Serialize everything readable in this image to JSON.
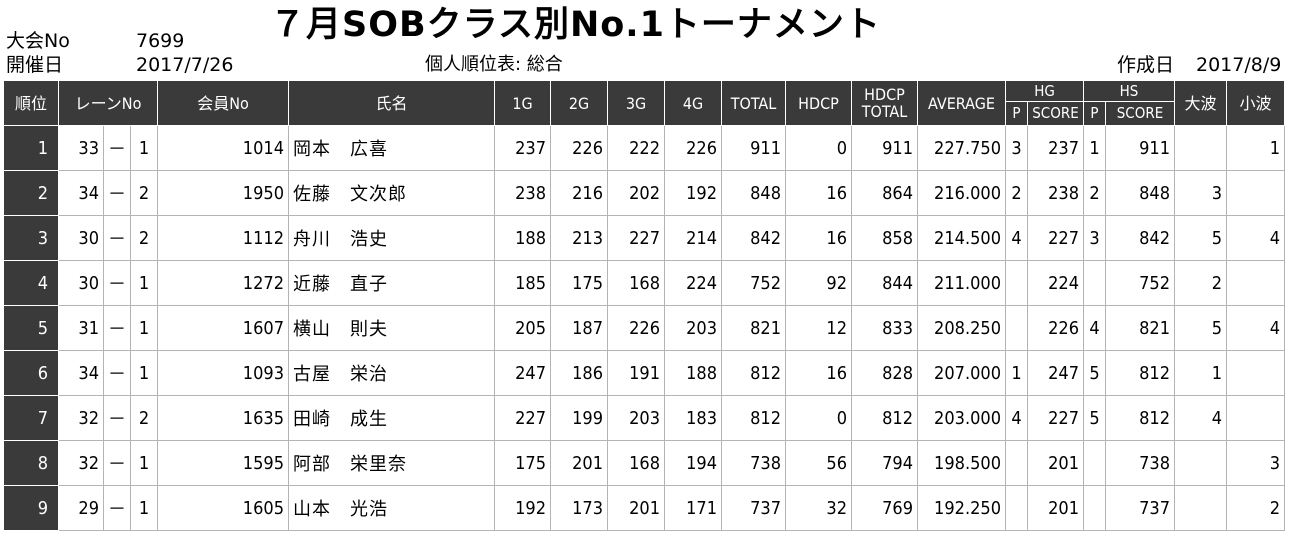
{
  "meta": {
    "tournament_no_label": "大会No",
    "tournament_no": "7699",
    "date_label": "開催日",
    "date": "2017/7/26",
    "created_label": "作成日",
    "created_date": "2017/8/9"
  },
  "title": "７月SOBクラス別No.1トーナメント",
  "subtitle": "個人順位表: 総合",
  "headers": {
    "rank": "順位",
    "lane": "レーンNo",
    "member": "会員No",
    "name": "氏名",
    "g1": "1G",
    "g2": "2G",
    "g3": "3G",
    "g4": "4G",
    "total": "TOTAL",
    "hdcp": "HDCP",
    "hdcp_total_1": "HDCP",
    "hdcp_total_2": "TOTAL",
    "average": "AVERAGE",
    "hg": "HG",
    "hs": "HS",
    "p": "P",
    "score": "SCORE",
    "big_wave": "大波",
    "small_wave": "小波"
  },
  "rows": [
    {
      "rank": "1",
      "lane_a": "33",
      "dash": "－",
      "lane_b": "1",
      "member": "1014",
      "name": "岡本　広喜",
      "g1": "237",
      "g2": "226",
      "g3": "222",
      "g4": "226",
      "total": "911",
      "hdcp": "0",
      "hdcp_total": "911",
      "average": "227.750",
      "hg_p": "3",
      "hg_score": "237",
      "hs_p": "1",
      "hs_score": "911",
      "big": "",
      "small": "1"
    },
    {
      "rank": "2",
      "lane_a": "34",
      "dash": "－",
      "lane_b": "2",
      "member": "1950",
      "name": "佐藤　文次郎",
      "g1": "238",
      "g2": "216",
      "g3": "202",
      "g4": "192",
      "total": "848",
      "hdcp": "16",
      "hdcp_total": "864",
      "average": "216.000",
      "hg_p": "2",
      "hg_score": "238",
      "hs_p": "2",
      "hs_score": "848",
      "big": "3",
      "small": ""
    },
    {
      "rank": "3",
      "lane_a": "30",
      "dash": "－",
      "lane_b": "2",
      "member": "1112",
      "name": "舟川　浩史",
      "g1": "188",
      "g2": "213",
      "g3": "227",
      "g4": "214",
      "total": "842",
      "hdcp": "16",
      "hdcp_total": "858",
      "average": "214.500",
      "hg_p": "4",
      "hg_score": "227",
      "hs_p": "3",
      "hs_score": "842",
      "big": "5",
      "small": "4"
    },
    {
      "rank": "4",
      "lane_a": "30",
      "dash": "－",
      "lane_b": "1",
      "member": "1272",
      "name": "近藤　直子",
      "g1": "185",
      "g2": "175",
      "g3": "168",
      "g4": "224",
      "total": "752",
      "hdcp": "92",
      "hdcp_total": "844",
      "average": "211.000",
      "hg_p": "",
      "hg_score": "224",
      "hs_p": "",
      "hs_score": "752",
      "big": "2",
      "small": ""
    },
    {
      "rank": "5",
      "lane_a": "31",
      "dash": "－",
      "lane_b": "1",
      "member": "1607",
      "name": "横山　則夫",
      "g1": "205",
      "g2": "187",
      "g3": "226",
      "g4": "203",
      "total": "821",
      "hdcp": "12",
      "hdcp_total": "833",
      "average": "208.250",
      "hg_p": "",
      "hg_score": "226",
      "hs_p": "4",
      "hs_score": "821",
      "big": "5",
      "small": "4"
    },
    {
      "rank": "6",
      "lane_a": "34",
      "dash": "－",
      "lane_b": "1",
      "member": "1093",
      "name": "古屋　栄治",
      "g1": "247",
      "g2": "186",
      "g3": "191",
      "g4": "188",
      "total": "812",
      "hdcp": "16",
      "hdcp_total": "828",
      "average": "207.000",
      "hg_p": "1",
      "hg_score": "247",
      "hs_p": "5",
      "hs_score": "812",
      "big": "1",
      "small": ""
    },
    {
      "rank": "7",
      "lane_a": "32",
      "dash": "－",
      "lane_b": "2",
      "member": "1635",
      "name": "田崎　成生",
      "g1": "227",
      "g2": "199",
      "g3": "203",
      "g4": "183",
      "total": "812",
      "hdcp": "0",
      "hdcp_total": "812",
      "average": "203.000",
      "hg_p": "4",
      "hg_score": "227",
      "hs_p": "5",
      "hs_score": "812",
      "big": "4",
      "small": ""
    },
    {
      "rank": "8",
      "lane_a": "32",
      "dash": "－",
      "lane_b": "1",
      "member": "1595",
      "name": "阿部　栄里奈",
      "g1": "175",
      "g2": "201",
      "g3": "168",
      "g4": "194",
      "total": "738",
      "hdcp": "56",
      "hdcp_total": "794",
      "average": "198.500",
      "hg_p": "",
      "hg_score": "201",
      "hs_p": "",
      "hs_score": "738",
      "big": "",
      "small": "3"
    },
    {
      "rank": "9",
      "lane_a": "29",
      "dash": "－",
      "lane_b": "1",
      "member": "1605",
      "name": "山本　光浩",
      "g1": "192",
      "g2": "173",
      "g3": "201",
      "g4": "171",
      "total": "737",
      "hdcp": "32",
      "hdcp_total": "769",
      "average": "192.250",
      "hg_p": "",
      "hg_score": "201",
      "hs_p": "",
      "hs_score": "737",
      "big": "",
      "small": "2"
    }
  ]
}
